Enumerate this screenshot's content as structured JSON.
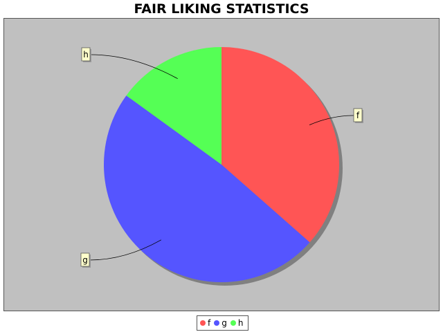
{
  "chart_data": {
    "type": "pie",
    "title": "FAIR LIKING STATISTICS",
    "slices": [
      {
        "label": "f",
        "value": 36.5,
        "color": "#ff5555"
      },
      {
        "label": "g",
        "value": 48.5,
        "color": "#5555ff"
      },
      {
        "label": "h",
        "value": 15.0,
        "color": "#55ff55"
      }
    ],
    "legend_position": "bottom"
  }
}
